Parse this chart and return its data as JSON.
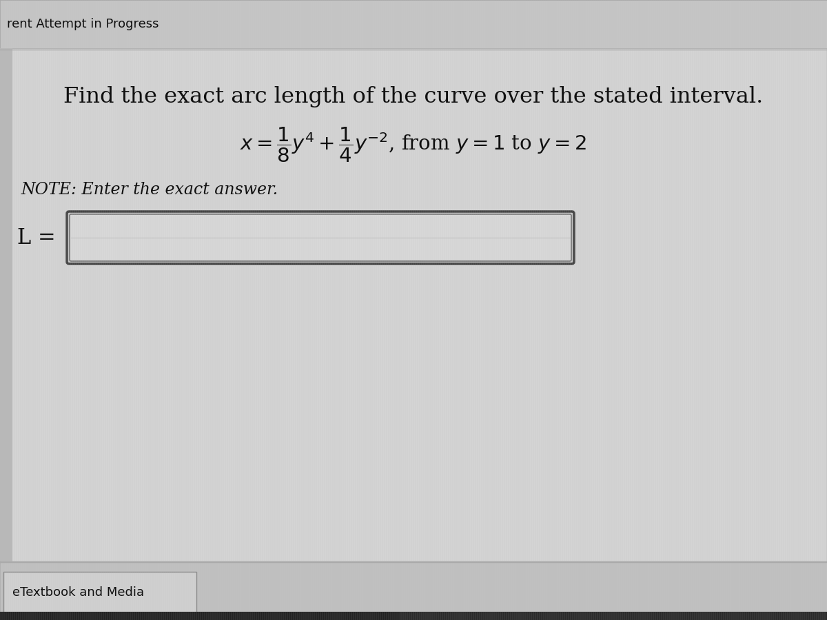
{
  "title_text": "Find the exact arc length of the curve over the stated interval.",
  "note_text": "NOTE: Enter the exact answer.",
  "label_text": "L =",
  "footer_text": "eTextbook and Media",
  "header_text": "rent Attempt in Progress",
  "bg_color": "#c8c8c8",
  "main_bg": "#d8d8d8",
  "content_bg": "#e0e0e0",
  "box_bg": "#d8d8d8",
  "box_border": "#555566",
  "footer_bg": "#c0c0c0",
  "title_fontsize": 23,
  "eq_fontsize": 21,
  "note_fontsize": 17,
  "label_fontsize": 22,
  "header_fontsize": 13,
  "footer_fontsize": 13
}
